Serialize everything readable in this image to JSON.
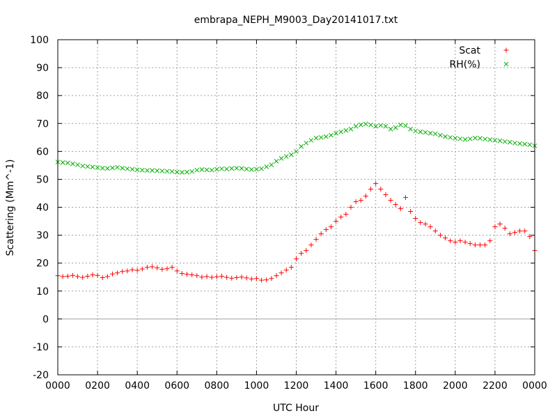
{
  "chart_data": {
    "type": "scatter",
    "title": "embrapa_NEPH_M9003_Day20141017.txt",
    "xlabel": "UTC Hour",
    "ylabel": "Scattering (Mm^-1)",
    "xlim": [
      0,
      24
    ],
    "ylim": [
      -20,
      100
    ],
    "grid": true,
    "legend_position": "top-right",
    "x_ticks": [
      0,
      2,
      4,
      6,
      8,
      10,
      12,
      14,
      16,
      18,
      20,
      22,
      24
    ],
    "x_tick_labels": [
      "0000",
      "0200",
      "0400",
      "0600",
      "0800",
      "1000",
      "1200",
      "1400",
      "1600",
      "1800",
      "2000",
      "2200",
      "0000"
    ],
    "y_ticks": [
      -20,
      -10,
      0,
      10,
      20,
      30,
      40,
      50,
      60,
      70,
      80,
      90,
      100
    ],
    "y_tick_labels": [
      "-20",
      "-10",
      "0",
      "10",
      "20",
      "30",
      "40",
      "50",
      "60",
      "70",
      "80",
      "90",
      "100"
    ],
    "series": [
      {
        "name": "Scat",
        "marker": "+",
        "color": "#ff0000",
        "x": [
          0.0,
          0.25,
          0.5,
          0.75,
          1.0,
          1.25,
          1.5,
          1.75,
          2.0,
          2.25,
          2.5,
          2.75,
          3.0,
          3.25,
          3.5,
          3.75,
          4.0,
          4.25,
          4.5,
          4.75,
          5.0,
          5.25,
          5.5,
          5.75,
          6.0,
          6.25,
          6.5,
          6.75,
          7.0,
          7.25,
          7.5,
          7.75,
          8.0,
          8.25,
          8.5,
          8.75,
          9.0,
          9.25,
          9.5,
          9.75,
          10.0,
          10.25,
          10.5,
          10.75,
          11.0,
          11.25,
          11.5,
          11.75,
          12.0,
          12.25,
          12.5,
          12.75,
          13.0,
          13.25,
          13.5,
          13.75,
          14.0,
          14.25,
          14.5,
          14.75,
          15.0,
          15.25,
          15.5,
          15.75,
          16.0,
          16.25,
          16.5,
          16.75,
          17.0,
          17.25,
          17.5,
          17.75,
          18.0,
          18.25,
          18.5,
          18.75,
          19.0,
          19.25,
          19.5,
          19.75,
          20.0,
          20.25,
          20.5,
          20.75,
          21.0,
          21.25,
          21.5,
          21.75,
          22.0,
          22.25,
          22.5,
          22.75,
          23.0,
          23.25,
          23.5,
          23.75,
          24.0
        ],
        "y": [
          15.5,
          15.2,
          15.3,
          15.6,
          15.2,
          14.9,
          15.3,
          15.8,
          15.6,
          14.8,
          15.2,
          16.1,
          16.5,
          17.0,
          17.2,
          17.6,
          17.4,
          17.9,
          18.5,
          18.7,
          18.3,
          17.8,
          18.0,
          18.5,
          17.2,
          16.3,
          16.0,
          15.8,
          15.5,
          15.0,
          15.2,
          14.9,
          15.1,
          15.3,
          14.9,
          14.6,
          14.8,
          15.0,
          14.7,
          14.3,
          14.5,
          13.9,
          14.0,
          14.5,
          15.5,
          16.5,
          17.5,
          18.5,
          21.5,
          23.5,
          24.5,
          26.5,
          28.5,
          30.5,
          32.0,
          33.0,
          35.0,
          36.5,
          37.5,
          40.0,
          42.0,
          42.5,
          44.0,
          46.5,
          48.5,
          46.5,
          44.5,
          42.5,
          41.0,
          39.5,
          43.5,
          38.5,
          36.0,
          34.5,
          34.0,
          33.0,
          31.5,
          30.0,
          29.0,
          28.0,
          27.5,
          28.0,
          27.5,
          27.0,
          26.5,
          26.5,
          26.5,
          28.0,
          33.0,
          34.0,
          32.5,
          30.5,
          31.0,
          31.5,
          31.5,
          29.5,
          24.5
        ]
      },
      {
        "name": "RH(%)",
        "marker": "x",
        "color": "#00b000",
        "x": [
          0.0,
          0.25,
          0.5,
          0.75,
          1.0,
          1.25,
          1.5,
          1.75,
          2.0,
          2.25,
          2.5,
          2.75,
          3.0,
          3.25,
          3.5,
          3.75,
          4.0,
          4.25,
          4.5,
          4.75,
          5.0,
          5.25,
          5.5,
          5.75,
          6.0,
          6.25,
          6.5,
          6.75,
          7.0,
          7.25,
          7.5,
          7.75,
          8.0,
          8.25,
          8.5,
          8.75,
          9.0,
          9.25,
          9.5,
          9.75,
          10.0,
          10.25,
          10.5,
          10.75,
          11.0,
          11.25,
          11.5,
          11.75,
          12.0,
          12.25,
          12.5,
          12.75,
          13.0,
          13.25,
          13.5,
          13.75,
          14.0,
          14.25,
          14.5,
          14.75,
          15.0,
          15.25,
          15.5,
          15.75,
          16.0,
          16.25,
          16.5,
          16.75,
          17.0,
          17.25,
          17.5,
          17.75,
          18.0,
          18.25,
          18.5,
          18.75,
          19.0,
          19.25,
          19.5,
          19.75,
          20.0,
          20.25,
          20.5,
          20.75,
          21.0,
          21.25,
          21.5,
          21.75,
          22.0,
          22.25,
          22.5,
          22.75,
          23.0,
          23.25,
          23.5,
          23.75,
          24.0
        ],
        "y": [
          56.2,
          56.0,
          55.9,
          55.6,
          55.2,
          54.8,
          54.6,
          54.4,
          54.2,
          54.0,
          53.9,
          54.1,
          54.3,
          54.0,
          53.8,
          53.6,
          53.4,
          53.3,
          53.2,
          53.2,
          53.1,
          53.0,
          52.9,
          52.8,
          52.6,
          52.5,
          52.6,
          52.8,
          53.3,
          53.5,
          53.4,
          53.3,
          53.6,
          53.8,
          53.7,
          53.9,
          54.0,
          53.9,
          53.7,
          53.5,
          53.6,
          53.8,
          54.5,
          55.2,
          56.5,
          57.5,
          58.2,
          58.8,
          60.0,
          61.8,
          63.0,
          64.0,
          64.8,
          65.0,
          65.3,
          65.8,
          66.5,
          67.0,
          67.5,
          68.0,
          69.0,
          69.5,
          69.8,
          69.5,
          69.0,
          69.3,
          69.0,
          68.0,
          68.5,
          69.5,
          69.2,
          68.0,
          67.3,
          67.0,
          66.8,
          66.5,
          66.3,
          65.8,
          65.3,
          65.0,
          64.7,
          64.5,
          64.3,
          64.5,
          64.8,
          64.7,
          64.4,
          64.2,
          64.0,
          63.8,
          63.5,
          63.3,
          63.0,
          62.8,
          62.6,
          62.4,
          62.0
        ]
      }
    ]
  }
}
